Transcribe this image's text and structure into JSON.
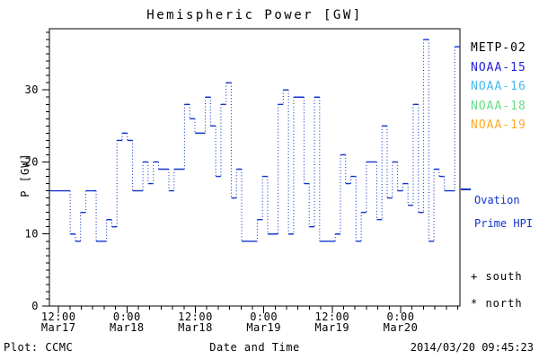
{
  "header": {
    "title": "Hemispheric Power [GW]"
  },
  "legend": {
    "satellites": [
      {
        "label": "METP-02",
        "color": "#000000"
      },
      {
        "label": "NOAA-15",
        "color": "#2222dd"
      },
      {
        "label": "NOAA-16",
        "color": "#44bbee"
      },
      {
        "label": "NOAA-18",
        "color": "#66dd88"
      },
      {
        "label": "NOAA-19",
        "color": "#ffaa22"
      }
    ],
    "ovation": {
      "label_line1": "Ovation",
      "label_line2": "Prime HPI",
      "color": "#1133cc"
    },
    "south_label": "+ south",
    "north_label": "* north"
  },
  "footer": {
    "credit": "Plot: CCMC",
    "timestamp": "2014/03/20 09:45:23"
  },
  "chart_data": {
    "type": "line",
    "title": "Hemispheric Power [GW]",
    "xlabel": "Date and Time",
    "ylabel": "P [GW]",
    "ylim": [
      0,
      38.5
    ],
    "y_major_ticks": [
      0,
      10,
      20,
      30
    ],
    "y_minor_step_gw": 1,
    "x_total_hours": 72,
    "x_minor_step_hours": 2,
    "x_major_ticks": [
      {
        "hour": 1.6,
        "time": "12:00",
        "date": "Mar17"
      },
      {
        "hour": 13.6,
        "time": "0:00",
        "date": "Mar18"
      },
      {
        "hour": 25.6,
        "time": "12:00",
        "date": "Mar18"
      },
      {
        "hour": 37.6,
        "time": "0:00",
        "date": "Mar19"
      },
      {
        "hour": 49.6,
        "time": "12:00",
        "date": "Mar19"
      },
      {
        "hour": 61.6,
        "time": "0:00",
        "date": "Mar20"
      }
    ],
    "grid": false,
    "legend_position": "right-outside",
    "series": [
      {
        "name": "Ovation Prime HPI",
        "color": "#1133cc",
        "line_style": "step: solid horizontals, dotted vertical connectors",
        "values_gw": [
          16,
          16,
          16,
          16,
          10,
          9,
          13,
          16,
          16,
          9,
          9,
          12,
          11,
          23,
          24,
          23,
          16,
          16,
          20,
          17,
          20,
          19,
          19,
          16,
          19,
          19,
          28,
          26,
          24,
          24,
          29,
          25,
          18,
          28,
          31,
          15,
          19,
          9,
          9,
          9,
          12,
          18,
          10,
          10,
          28,
          30,
          10,
          29,
          29,
          17,
          11,
          29,
          9,
          9,
          9,
          10,
          21,
          17,
          18,
          9,
          13,
          20,
          20,
          12,
          25,
          15,
          20,
          16,
          17,
          14,
          28,
          13,
          37,
          9,
          19,
          18,
          16,
          16,
          36
        ]
      }
    ]
  }
}
